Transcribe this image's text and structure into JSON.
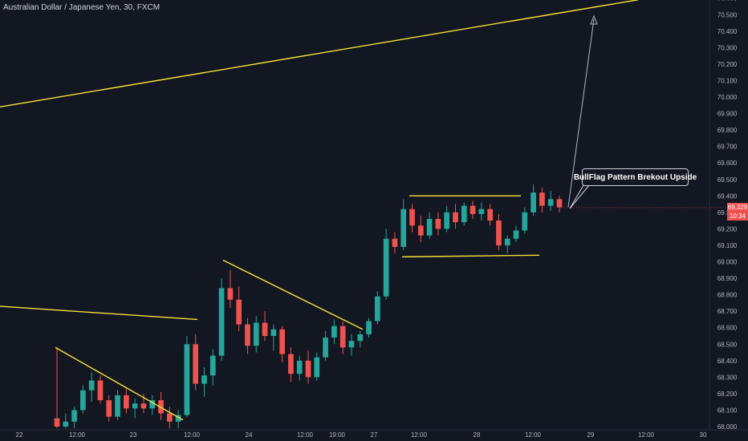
{
  "chart": {
    "title": "Australian Dollar / Japanese Yen, 30, FXCM",
    "annotation": "BullFlag Pattern Brekout Upside",
    "last_price_label": "69.329",
    "countdown_label": "10:34"
  },
  "colors": {
    "background": "#131722",
    "up": "#26a69a",
    "down": "#ef5350",
    "trendline": "#f5e33a",
    "arrow": "#b2b5be",
    "axis_text": "#b2b5be"
  },
  "chart_data": {
    "type": "candlestick",
    "symbol": "AUDJPY",
    "timeframe": "30",
    "source": "FXCM",
    "y_tick_labels": [
      "68.000",
      "68.100",
      "68.200",
      "68.300",
      "68.400",
      "68.500",
      "68.600",
      "68.700",
      "68.800",
      "68.900",
      "69.000",
      "69.100",
      "69.200",
      "69.300",
      "69.400",
      "69.500",
      "69.600",
      "69.700",
      "69.800",
      "69.900",
      "70.000",
      "70.100",
      "70.200",
      "70.300",
      "70.400",
      "70.500",
      "70.600"
    ],
    "x_tick_labels": [
      "22",
      "12:00",
      "23",
      "12:00",
      "24",
      "12:00",
      "19:00",
      "27",
      "12:00",
      "28",
      "12:00",
      "29",
      "12:00",
      "30"
    ],
    "ylim": [
      67.99,
      70.62
    ],
    "grid": false,
    "last_price": 69.329,
    "candles_ohlc": [
      [
        68.05,
        68.48,
        67.99,
        68.0
      ],
      [
        68.0,
        68.08,
        67.99,
        68.03
      ],
      [
        68.03,
        68.12,
        67.99,
        68.1
      ],
      [
        68.1,
        68.25,
        68.08,
        68.22
      ],
      [
        68.22,
        68.33,
        68.15,
        68.28
      ],
      [
        68.28,
        68.31,
        68.14,
        68.16
      ],
      [
        68.16,
        68.19,
        68.03,
        68.06
      ],
      [
        68.06,
        68.22,
        68.04,
        68.19
      ],
      [
        68.19,
        68.24,
        68.08,
        68.11
      ],
      [
        68.11,
        68.17,
        68.05,
        68.14
      ],
      [
        68.14,
        68.2,
        68.08,
        68.11
      ],
      [
        68.11,
        68.19,
        68.07,
        68.16
      ],
      [
        68.16,
        68.21,
        68.04,
        68.08
      ],
      [
        68.08,
        68.12,
        67.99,
        68.03
      ],
      [
        68.03,
        68.1,
        67.99,
        68.07
      ],
      [
        68.07,
        68.55,
        68.06,
        68.5
      ],
      [
        68.5,
        68.56,
        68.22,
        68.26
      ],
      [
        68.26,
        68.36,
        68.18,
        68.31
      ],
      [
        68.31,
        68.47,
        68.25,
        68.43
      ],
      [
        68.43,
        68.9,
        68.4,
        68.84
      ],
      [
        68.84,
        68.95,
        68.72,
        68.77
      ],
      [
        68.77,
        68.85,
        68.58,
        68.62
      ],
      [
        68.62,
        68.66,
        68.44,
        68.49
      ],
      [
        68.49,
        68.67,
        68.45,
        68.63
      ],
      [
        68.63,
        68.7,
        68.52,
        68.55
      ],
      [
        68.55,
        68.62,
        68.46,
        68.59
      ],
      [
        68.59,
        68.61,
        68.39,
        68.44
      ],
      [
        68.44,
        68.48,
        68.27,
        68.32
      ],
      [
        68.32,
        68.43,
        68.28,
        68.4
      ],
      [
        68.4,
        68.46,
        68.26,
        68.3
      ],
      [
        68.3,
        68.45,
        68.28,
        68.42
      ],
      [
        68.42,
        68.58,
        68.4,
        68.54
      ],
      [
        68.54,
        68.65,
        68.5,
        68.61
      ],
      [
        68.61,
        68.64,
        68.44,
        68.48
      ],
      [
        68.48,
        68.56,
        68.43,
        68.52
      ],
      [
        68.52,
        68.58,
        68.48,
        68.56
      ],
      [
        68.56,
        68.66,
        68.54,
        68.64
      ],
      [
        68.64,
        68.82,
        68.62,
        68.79
      ],
      [
        68.79,
        69.2,
        68.77,
        69.14
      ],
      [
        69.14,
        69.18,
        69.05,
        69.09
      ],
      [
        69.09,
        69.38,
        69.07,
        69.32
      ],
      [
        69.32,
        69.35,
        69.18,
        69.22
      ],
      [
        69.22,
        69.28,
        69.12,
        69.16
      ],
      [
        69.16,
        69.3,
        69.14,
        69.26
      ],
      [
        69.26,
        69.3,
        69.16,
        69.2
      ],
      [
        69.2,
        69.34,
        69.18,
        69.3
      ],
      [
        69.3,
        69.35,
        69.2,
        69.24
      ],
      [
        69.24,
        69.36,
        69.22,
        69.34
      ],
      [
        69.34,
        69.37,
        69.26,
        69.29
      ],
      [
        69.29,
        69.36,
        69.25,
        69.32
      ],
      [
        69.32,
        69.35,
        69.22,
        69.25
      ],
      [
        69.25,
        69.29,
        69.07,
        69.1
      ],
      [
        69.1,
        69.16,
        69.05,
        69.14
      ],
      [
        69.14,
        69.22,
        69.12,
        69.19
      ],
      [
        69.19,
        69.33,
        69.17,
        69.3
      ],
      [
        69.3,
        69.47,
        69.28,
        69.42
      ],
      [
        69.42,
        69.45,
        69.3,
        69.34
      ],
      [
        69.34,
        69.43,
        69.31,
        69.38
      ],
      [
        69.38,
        69.4,
        69.3,
        69.33
      ]
    ],
    "drawn_lines_price_time": [
      {
        "from": [
          "20:00 day before 22",
          69.94
        ],
        "to": [
          "12:00 on 29",
          70.59
        ]
      },
      {
        "from": [
          "20:00 day before 22",
          68.73
        ],
        "to": [
          "12:00 on 23",
          68.65
        ]
      },
      {
        "from": [
          "12:00 on 22",
          68.48
        ],
        "to": [
          "22:00 on 23",
          68.04
        ]
      },
      {
        "from": [
          "06:00 on 24",
          69.01
        ],
        "to": [
          "21:00 on 24",
          68.59
        ]
      },
      {
        "from": [
          "00:00 on 27",
          69.4
        ],
        "to": [
          "12:00 on 28",
          69.4
        ]
      },
      {
        "from": [
          "00:00 on 27",
          69.03
        ],
        "to": [
          "12:00 on 28",
          69.04
        ]
      }
    ]
  }
}
